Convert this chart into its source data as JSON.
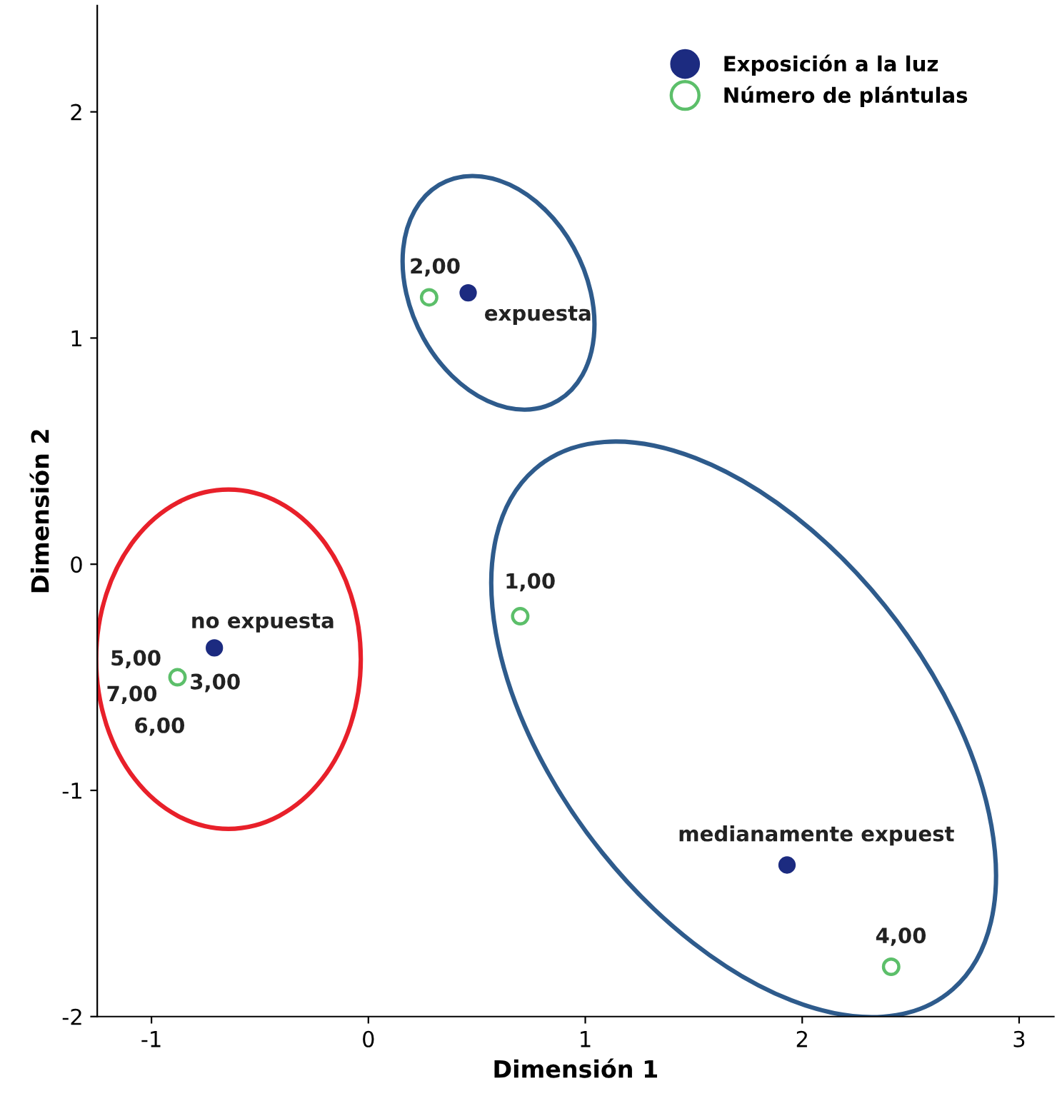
{
  "chart_data": {
    "type": "scatter",
    "xlabel": "Dimensión 1",
    "ylabel": "Dimensión 2",
    "xlim": [
      -1.25,
      3.16
    ],
    "ylim": [
      -2.0,
      2.47
    ],
    "xticks": [
      {
        "value": -1,
        "label": "-1"
      },
      0,
      1,
      2,
      3
    ],
    "yticks": [
      {
        "value": -2,
        "label": "-2"
      },
      {
        "value": -1,
        "label": "-1"
      },
      0,
      1,
      2
    ],
    "grid": false,
    "legend": "top right",
    "marker": "circle",
    "series": [
      {
        "name": "Exposición a la luz",
        "color": "#1c2b80",
        "x": [
          0.46,
          -0.71,
          1.93
        ],
        "values": [
          1.2,
          -0.37,
          -1.33
        ]
      },
      {
        "name": "Número de plántulas",
        "color": "#5cbf6a",
        "x": [
          0.28,
          0.7,
          2.41,
          -0.88
        ],
        "values": [
          1.18,
          -0.23,
          -1.78,
          -0.5
        ]
      }
    ],
    "annotations": [
      {
        "text": "expuesta",
        "x": 0.46,
        "y": 1.2
      },
      {
        "text": "no expuesta",
        "x": -0.71,
        "y": -0.37
      },
      {
        "text": "medianamente expuest",
        "x": 1.93,
        "y": -1.33
      },
      {
        "text": "2,00",
        "x": 0.28,
        "y": 1.18
      },
      {
        "text": "1,00",
        "x": 0.7,
        "y": -0.23
      },
      {
        "text": "4,00",
        "x": 2.41,
        "y": -1.78
      },
      {
        "text": "5,00",
        "x": -0.88,
        "y": -0.5
      },
      {
        "text": "3,00",
        "x": -0.88,
        "y": -0.5
      },
      {
        "text": "7,00",
        "x": -0.88,
        "y": -0.5
      },
      {
        "text": "6,00",
        "x": -0.88,
        "y": -0.5
      }
    ]
  }
}
